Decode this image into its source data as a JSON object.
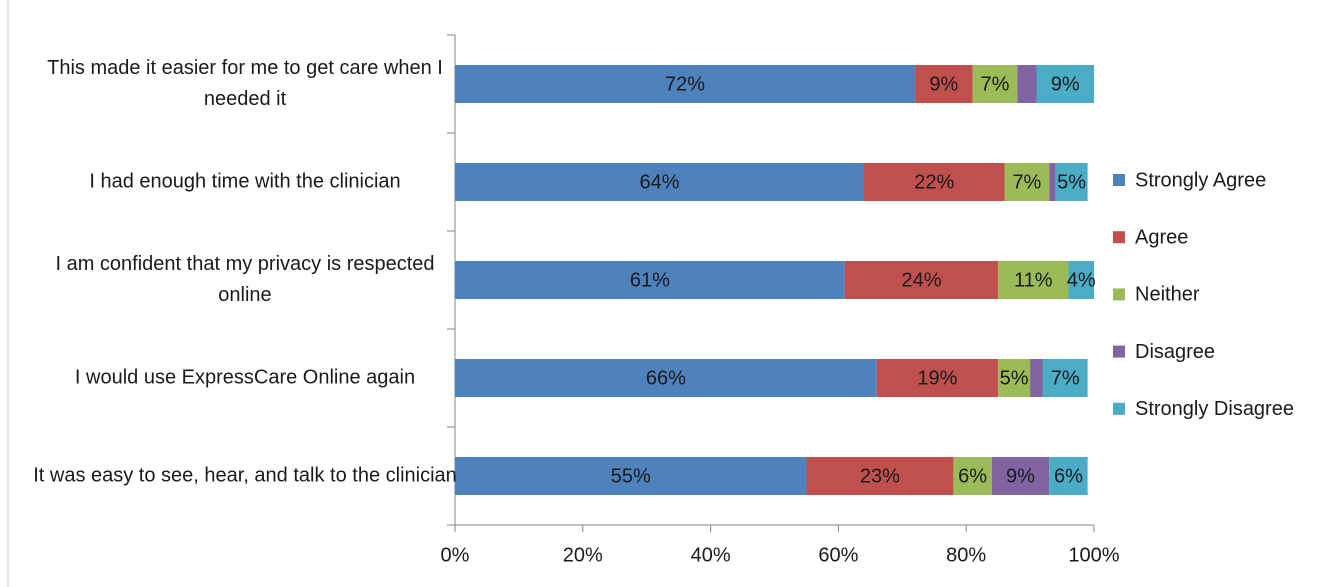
{
  "chart_data": {
    "type": "stacked-barh",
    "categories": [
      "This made it easier for me to get care when I needed it",
      "I had enough time with the clinician",
      "I am confident that my privacy is respected online",
      "I would use ExpressCare Online again",
      "It was easy to see, hear, and talk to the clinician"
    ],
    "series": [
      {
        "name": "Strongly Agree",
        "color": "#4f81bd",
        "values": [
          72,
          64,
          61,
          66,
          55
        ],
        "value_labels": [
          "72%",
          "64%",
          "61%",
          "66%",
          "55%"
        ]
      },
      {
        "name": "Agree",
        "color": "#c0504d",
        "values": [
          9,
          22,
          24,
          19,
          23
        ],
        "value_labels": [
          "9%",
          "22%",
          "24%",
          "19%",
          "23%"
        ]
      },
      {
        "name": "Neither",
        "color": "#9bbb59",
        "values": [
          7,
          7,
          11,
          5,
          6
        ],
        "value_labels": [
          "7%",
          "7%",
          "11%",
          "5%",
          "6%"
        ]
      },
      {
        "name": "Disagree",
        "color": "#8064a2",
        "values": [
          3,
          1,
          0,
          2,
          9
        ],
        "value_labels": [
          null,
          null,
          null,
          null,
          "9%"
        ]
      },
      {
        "name": "Strongly Disagree",
        "color": "#4bacc6",
        "values": [
          9,
          5,
          4,
          7,
          6
        ],
        "value_labels": [
          "9%",
          "5%",
          "4%",
          "7%",
          "6%"
        ]
      }
    ],
    "xlim": [
      0,
      100
    ],
    "xticks": [
      {
        "value": 0,
        "label": "0%"
      },
      {
        "value": 20,
        "label": "20%"
      },
      {
        "value": 40,
        "label": "40%"
      },
      {
        "value": 60,
        "label": "60%"
      },
      {
        "value": 80,
        "label": "80%"
      },
      {
        "value": 100,
        "label": "100%"
      }
    ],
    "legend": "right"
  }
}
